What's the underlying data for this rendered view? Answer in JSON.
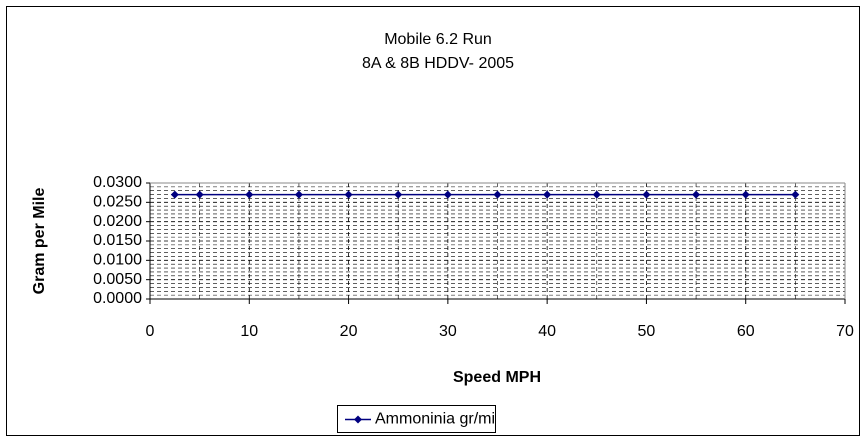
{
  "chart_data": {
    "type": "line",
    "title": "Mobile 6.2 Run",
    "subtitle": "8A & 8B HDDV- 2005",
    "x_label": "Speed MPH",
    "y_label": "Gram per Mile",
    "x": [
      2.5,
      5,
      10,
      15,
      20,
      25,
      30,
      35,
      40,
      45,
      50,
      55,
      60,
      65
    ],
    "series": [
      {
        "name": "Ammoninia gr/mi",
        "color": "#000080",
        "values": [
          0.027,
          0.027,
          0.027,
          0.027,
          0.027,
          0.027,
          0.027,
          0.027,
          0.027,
          0.027,
          0.027,
          0.027,
          0.027,
          0.027
        ]
      }
    ],
    "xlim": [
      0,
      70
    ],
    "xticks": [
      0,
      10,
      20,
      30,
      40,
      50,
      60,
      70
    ],
    "ylim": [
      0,
      0.03
    ],
    "yticks": [
      {
        "value": 0,
        "label": "0.0000"
      },
      {
        "value": 0.005,
        "label": "0.0050"
      },
      {
        "value": 0.01,
        "label": "0.0100"
      },
      {
        "value": 0.015,
        "label": "0.0150"
      },
      {
        "value": 0.02,
        "label": "0.0200"
      },
      {
        "value": 0.025,
        "label": "0.0250"
      },
      {
        "value": 0.03,
        "label": "0.0300"
      }
    ],
    "grid": true,
    "legend": "bottom"
  }
}
